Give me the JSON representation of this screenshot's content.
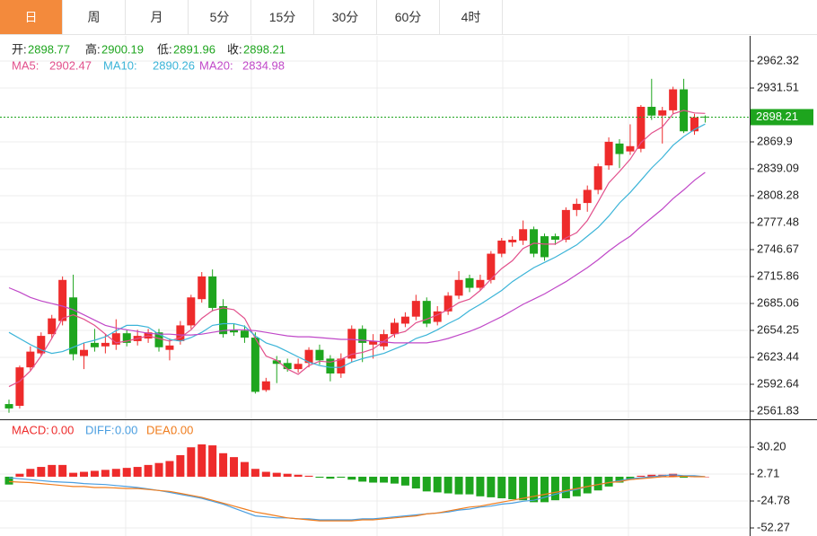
{
  "tabs": {
    "items": [
      "日",
      "周",
      "月",
      "5分",
      "15分",
      "30分",
      "60分",
      "4时"
    ],
    "active": 0
  },
  "chart_data": [
    {
      "type": "candlestick",
      "ohlc_labels": [
        "开:",
        "高:",
        "低:",
        "收:"
      ],
      "up_color": "#ee2b2b",
      "down_color": "#1ea51e",
      "open": [
        2570,
        2568,
        2612,
        2628,
        2650,
        2665,
        2692,
        2625,
        2640,
        2636,
        2638,
        2651,
        2642,
        2645,
        2652,
        2632,
        2642,
        2660,
        2690,
        2716,
        2682,
        2655,
        2654,
        2646,
        2586,
        2620,
        2617,
        2610,
        2617,
        2632,
        2622,
        2605,
        2622,
        2656,
        2638,
        2636,
        2650,
        2662,
        2670,
        2688,
        2664,
        2676,
        2694,
        2714,
        2703,
        2712,
        2742,
        2755,
        2757,
        2770,
        2762,
        2762,
        2758,
        2792,
        2800,
        2815,
        2843,
        2868,
        2859,
        2862,
        2910,
        2900,
        2906,
        2930,
        2882,
        2898.77
      ],
      "high": [
        2575,
        2614,
        2636,
        2652,
        2672,
        2716,
        2718,
        2640,
        2656,
        2650,
        2667,
        2655,
        2655,
        2656,
        2656,
        2645,
        2665,
        2695,
        2721,
        2724,
        2690,
        2662,
        2660,
        2652,
        2600,
        2625,
        2622,
        2622,
        2635,
        2638,
        2626,
        2628,
        2660,
        2660,
        2650,
        2655,
        2668,
        2675,
        2695,
        2692,
        2682,
        2698,
        2722,
        2718,
        2718,
        2745,
        2760,
        2762,
        2780,
        2773,
        2765,
        2765,
        2795,
        2805,
        2820,
        2845,
        2875,
        2873,
        2890,
        2912,
        2942,
        2910,
        2933,
        2942,
        2902,
        2900.19
      ],
      "low": [
        2560,
        2565,
        2608,
        2625,
        2645,
        2660,
        2620,
        2610,
        2630,
        2628,
        2632,
        2636,
        2637,
        2640,
        2630,
        2620,
        2638,
        2656,
        2686,
        2676,
        2646,
        2648,
        2640,
        2582,
        2584,
        2594,
        2607,
        2606,
        2612,
        2615,
        2596,
        2600,
        2618,
        2618,
        2622,
        2632,
        2646,
        2658,
        2666,
        2658,
        2660,
        2672,
        2690,
        2698,
        2700,
        2708,
        2738,
        2750,
        2752,
        2738,
        2734,
        2752,
        2755,
        2785,
        2790,
        2810,
        2838,
        2840,
        2855,
        2858,
        2895,
        2868,
        2902,
        2880,
        2878,
        2891.96
      ],
      "close": [
        2565,
        2612,
        2630,
        2648,
        2668,
        2712,
        2627,
        2632,
        2635,
        2640,
        2651,
        2640,
        2648,
        2652,
        2635,
        2637,
        2660,
        2692,
        2716,
        2680,
        2650,
        2652,
        2646,
        2584,
        2596,
        2616,
        2610,
        2616,
        2632,
        2620,
        2605,
        2622,
        2656,
        2640,
        2642,
        2650,
        2663,
        2670,
        2688,
        2662,
        2676,
        2694,
        2712,
        2703,
        2712,
        2742,
        2757,
        2758,
        2770,
        2742,
        2738,
        2758,
        2792,
        2799,
        2815,
        2842,
        2870,
        2856,
        2865,
        2910,
        2900,
        2906,
        2930,
        2882,
        2898,
        2898.21
      ],
      "series": [
        {
          "name": "MA5:",
          "color": "#e2508c",
          "values": [
            2590,
            2596,
            2608,
            2625,
            2645,
            2668,
            2672,
            2667,
            2660,
            2650,
            2640,
            2642,
            2645,
            2648,
            2645,
            2642,
            2646,
            2655,
            2668,
            2677,
            2680,
            2678,
            2668,
            2645,
            2625,
            2620,
            2610,
            2604,
            2614,
            2619,
            2618,
            2621,
            2627,
            2629,
            2633,
            2642,
            2650,
            2653,
            2663,
            2667,
            2672,
            2678,
            2686,
            2690,
            2700,
            2713,
            2725,
            2734,
            2748,
            2754,
            2753,
            2753,
            2760,
            2766,
            2780,
            2801,
            2823,
            2836,
            2850,
            2869,
            2880,
            2887,
            2902,
            2906,
            2903,
            2902.47
          ]
        },
        {
          "name": "MA10:",
          "color": "#3bb4d8",
          "values": [
            2652,
            2645,
            2638,
            2632,
            2628,
            2630,
            2635,
            2640,
            2643,
            2647,
            2654,
            2660,
            2660,
            2658,
            2650,
            2644,
            2642,
            2646,
            2652,
            2660,
            2662,
            2662,
            2659,
            2648,
            2640,
            2636,
            2630,
            2624,
            2618,
            2614,
            2612,
            2612,
            2618,
            2622,
            2625,
            2628,
            2633,
            2638,
            2645,
            2649,
            2655,
            2662,
            2668,
            2677,
            2684,
            2692,
            2700,
            2710,
            2718,
            2726,
            2732,
            2738,
            2745,
            2752,
            2762,
            2772,
            2785,
            2800,
            2812,
            2826,
            2840,
            2852,
            2866,
            2876,
            2884,
            2890.26
          ]
        },
        {
          "name": "MA20:",
          "color": "#c048c8",
          "values": [
            2703,
            2698,
            2692,
            2688,
            2685,
            2682,
            2678,
            2672,
            2666,
            2660,
            2657,
            2655,
            2653,
            2651,
            2650,
            2650,
            2649,
            2649,
            2650,
            2652,
            2654,
            2655,
            2655,
            2654,
            2652,
            2650,
            2648,
            2647,
            2647,
            2646,
            2645,
            2644,
            2644,
            2643,
            2642,
            2641,
            2640,
            2640,
            2640,
            2640,
            2642,
            2645,
            2649,
            2653,
            2658,
            2664,
            2670,
            2677,
            2684,
            2690,
            2696,
            2703,
            2710,
            2718,
            2726,
            2735,
            2745,
            2754,
            2762,
            2773,
            2783,
            2793,
            2805,
            2815,
            2826,
            2834.98
          ]
        }
      ],
      "last_color": "#1ea51e",
      "ylim": [
        2552.6,
        2991.1
      ],
      "yticks": [
        2561.83,
        2592.64,
        2623.44,
        2654.25,
        2685.06,
        2715.86,
        2746.67,
        2777.48,
        2808.28,
        2839.09,
        2869.9,
        2931.51,
        2962.32
      ],
      "grid": true
    },
    {
      "type": "macd",
      "bars": {
        "name": "MACD:",
        "label": "0.00",
        "color": "#ee2b2b",
        "values": [
          -8,
          3,
          8,
          10,
          12,
          12,
          4,
          5,
          6,
          7,
          8,
          9,
          10,
          12,
          14,
          16,
          22,
          30,
          33,
          32,
          24,
          20,
          15,
          8,
          5,
          4,
          3,
          2,
          1,
          -1,
          -2,
          -1,
          -3,
          -5,
          -6,
          -6,
          -7,
          -9,
          -12,
          -15,
          -16,
          -17,
          -18,
          -18,
          -20,
          -21,
          -22,
          -23,
          -24,
          -26,
          -26,
          -24,
          -22,
          -20,
          -17,
          -14,
          -10,
          -6,
          -3,
          1,
          2,
          2,
          3,
          -1,
          0,
          0
        ]
      },
      "series": [
        {
          "name": "DIFF:",
          "label": "0.00",
          "color": "#4a9ee0",
          "values": [
            -1,
            -2,
            -3,
            -4,
            -5,
            -5.5,
            -6,
            -7,
            -7.5,
            -8,
            -9,
            -10,
            -11,
            -12.5,
            -14,
            -16,
            -18,
            -20,
            -22,
            -25,
            -28,
            -32,
            -36,
            -40,
            -41,
            -42,
            -42,
            -43,
            -43,
            -44,
            -44,
            -44,
            -44,
            -43,
            -43,
            -42,
            -41,
            -40,
            -39,
            -38,
            -37,
            -36,
            -34,
            -33,
            -31,
            -30,
            -28,
            -27,
            -25,
            -24,
            -21,
            -18,
            -15,
            -13,
            -10,
            -8,
            -6,
            -4,
            -2,
            -1,
            0,
            1,
            2,
            1,
            1,
            0
          ]
        },
        {
          "name": "DEA:",
          "label": "0.00",
          "color": "#f07d1e",
          "values": [
            -5,
            -5.5,
            -6,
            -7,
            -8,
            -9,
            -10,
            -10,
            -11,
            -11,
            -11.5,
            -12,
            -12,
            -13,
            -14,
            -15,
            -17,
            -19,
            -21,
            -24,
            -27,
            -30,
            -33,
            -36,
            -38,
            -40,
            -42,
            -43,
            -44,
            -45,
            -45,
            -45,
            -45,
            -44,
            -44,
            -43,
            -42,
            -41,
            -40,
            -38,
            -37,
            -35,
            -33,
            -31,
            -30,
            -28,
            -26,
            -24,
            -22,
            -20,
            -18,
            -16,
            -14,
            -12,
            -10,
            -8,
            -6,
            -5,
            -3,
            -2,
            -1,
            0,
            0,
            0.5,
            0,
            0
          ]
        }
      ],
      "ylim": [
        -60.5,
        57.7
      ],
      "yticks": [
        {
          "value": -52.27,
          "label": "-52.27"
        },
        {
          "value": -24.78,
          "label": "-24.78"
        },
        {
          "value": 2.71,
          "label": "2.71"
        },
        {
          "value": 30.2,
          "label": "30.20"
        }
      ],
      "grid": true
    }
  ]
}
